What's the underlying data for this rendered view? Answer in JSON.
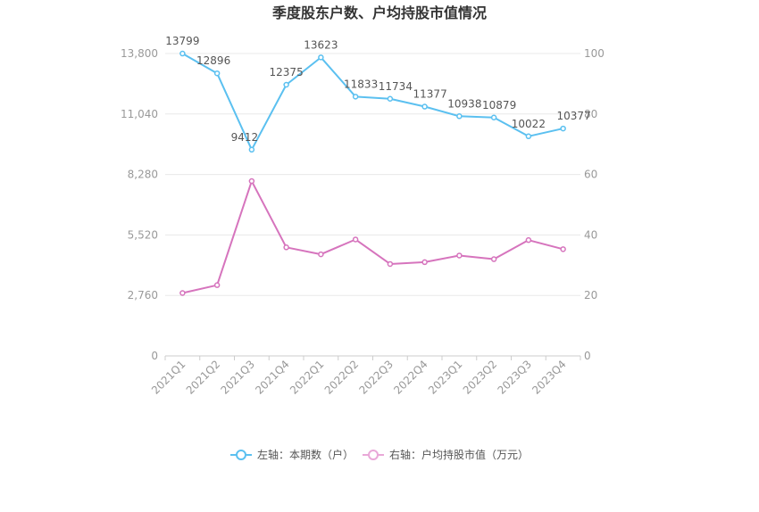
{
  "chart_data": {
    "type": "line",
    "title": "季度股东户数、户均持股市值情况",
    "categories": [
      "2021Q1",
      "2021Q2",
      "2021Q3",
      "2021Q4",
      "2022Q1",
      "2022Q2",
      "2022Q3",
      "2022Q4",
      "2023Q1",
      "2023Q2",
      "2023Q3",
      "2023Q4"
    ],
    "left_axis": {
      "min": 0,
      "max": 13800,
      "ticks": [
        0,
        2760,
        5520,
        8280,
        11040,
        13800
      ],
      "tick_labels": [
        "0",
        "2,760",
        "5,520",
        "8,280",
        "11,040",
        "13,800"
      ]
    },
    "right_axis": {
      "min": 0,
      "max": 100,
      "ticks": [
        0,
        20,
        40,
        60,
        80,
        100
      ],
      "tick_labels": [
        "0",
        "20",
        "40",
        "60",
        "80",
        "100"
      ]
    },
    "grid": true,
    "legend_position": "bottom",
    "series": [
      {
        "name": "左轴：本期数（户）",
        "axis": "left",
        "color": "#5bc0f0",
        "values": [
          13799,
          12896,
          9412,
          12375,
          13623,
          11833,
          11734,
          11377,
          10938,
          10879,
          10022,
          10377
        ],
        "data_labels": [
          "13799",
          "12896",
          "9412",
          "12375",
          "13623",
          "11833",
          "11734",
          "11377",
          "10938",
          "10879",
          "10022",
          "10377"
        ]
      },
      {
        "name": "右轴：户均持股市值（万元）",
        "axis": "right",
        "color": "#d674bd",
        "values": [
          20.8,
          23.4,
          57.8,
          35.9,
          33.6,
          38.5,
          30.4,
          31.0,
          33.2,
          32.0,
          38.3,
          35.3
        ]
      }
    ]
  }
}
